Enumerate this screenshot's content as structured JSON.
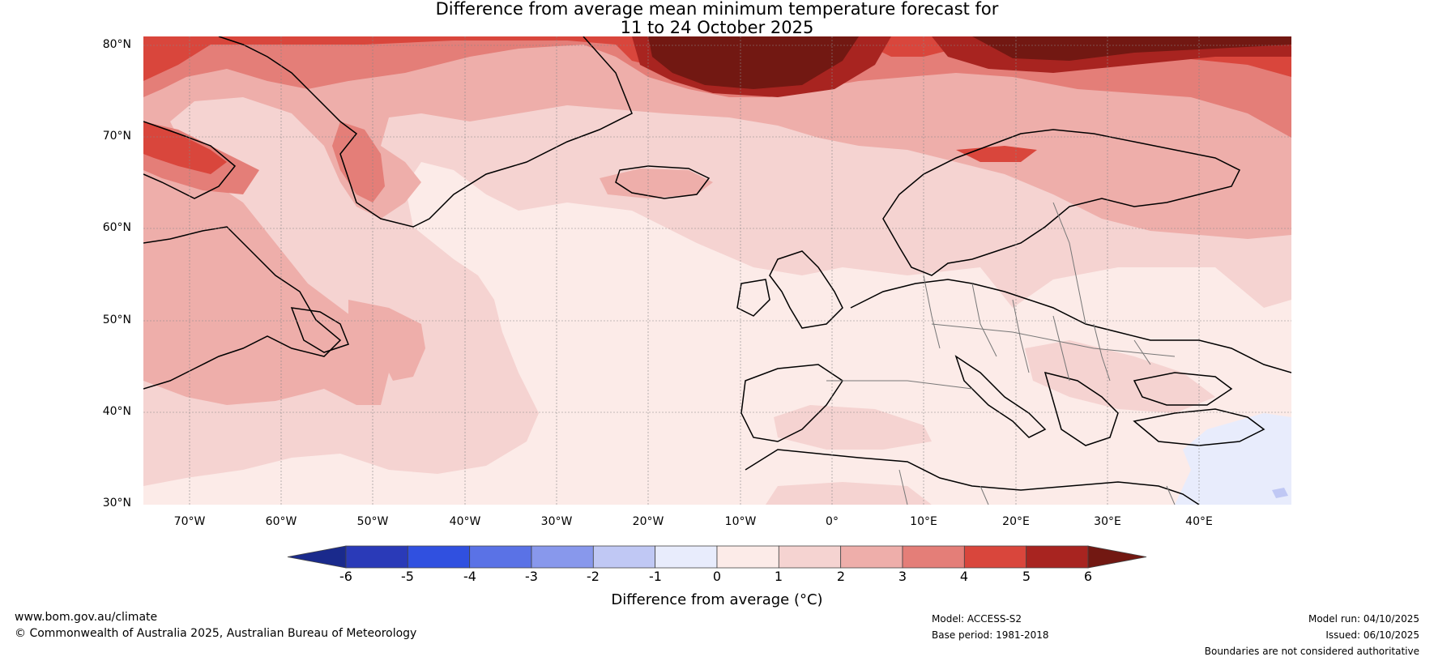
{
  "title": {
    "line1": "Difference from average mean minimum temperature forecast for",
    "line2": "11 to 24 October 2025"
  },
  "map": {
    "lat_labels": [
      "80°N",
      "70°N",
      "60°N",
      "50°N",
      "40°N",
      "30°N"
    ],
    "lon_labels": [
      "70°W",
      "60°W",
      "50°W",
      "40°W",
      "30°W",
      "20°W",
      "10°W",
      "0°",
      "10°E",
      "20°E",
      "30°E",
      "40°E"
    ],
    "lon_range": [
      -75,
      50
    ],
    "lat_range": [
      30,
      80
    ]
  },
  "colorbar": {
    "ticks": [
      "-6",
      "-5",
      "-4",
      "-3",
      "-2",
      "-1",
      "0",
      "1",
      "2",
      "3",
      "4",
      "5",
      "6"
    ],
    "colors": [
      "#1a2a8c",
      "#2a3ab8",
      "#3050e0",
      "#5a72e6",
      "#8898ec",
      "#c0c8f4",
      "#e8ecfc",
      "#fcebe8",
      "#f5d3d1",
      "#eeaeaa",
      "#e47e78",
      "#d9463c",
      "#a82420",
      "#721812"
    ],
    "label": "Difference from average (°C)"
  },
  "footer": {
    "website": "www.bom.gov.au/climate",
    "copyright": "© Commonwealth of Australia 2025, Australian Bureau of Meteorology",
    "model": "Model: ACCESS-S2",
    "base_period": "Base period: 1981-2018",
    "model_run": "Model run: 04/10/2025",
    "issued": "Issued: 06/10/2025",
    "disclaimer": "Boundaries are not considered authoritative"
  }
}
